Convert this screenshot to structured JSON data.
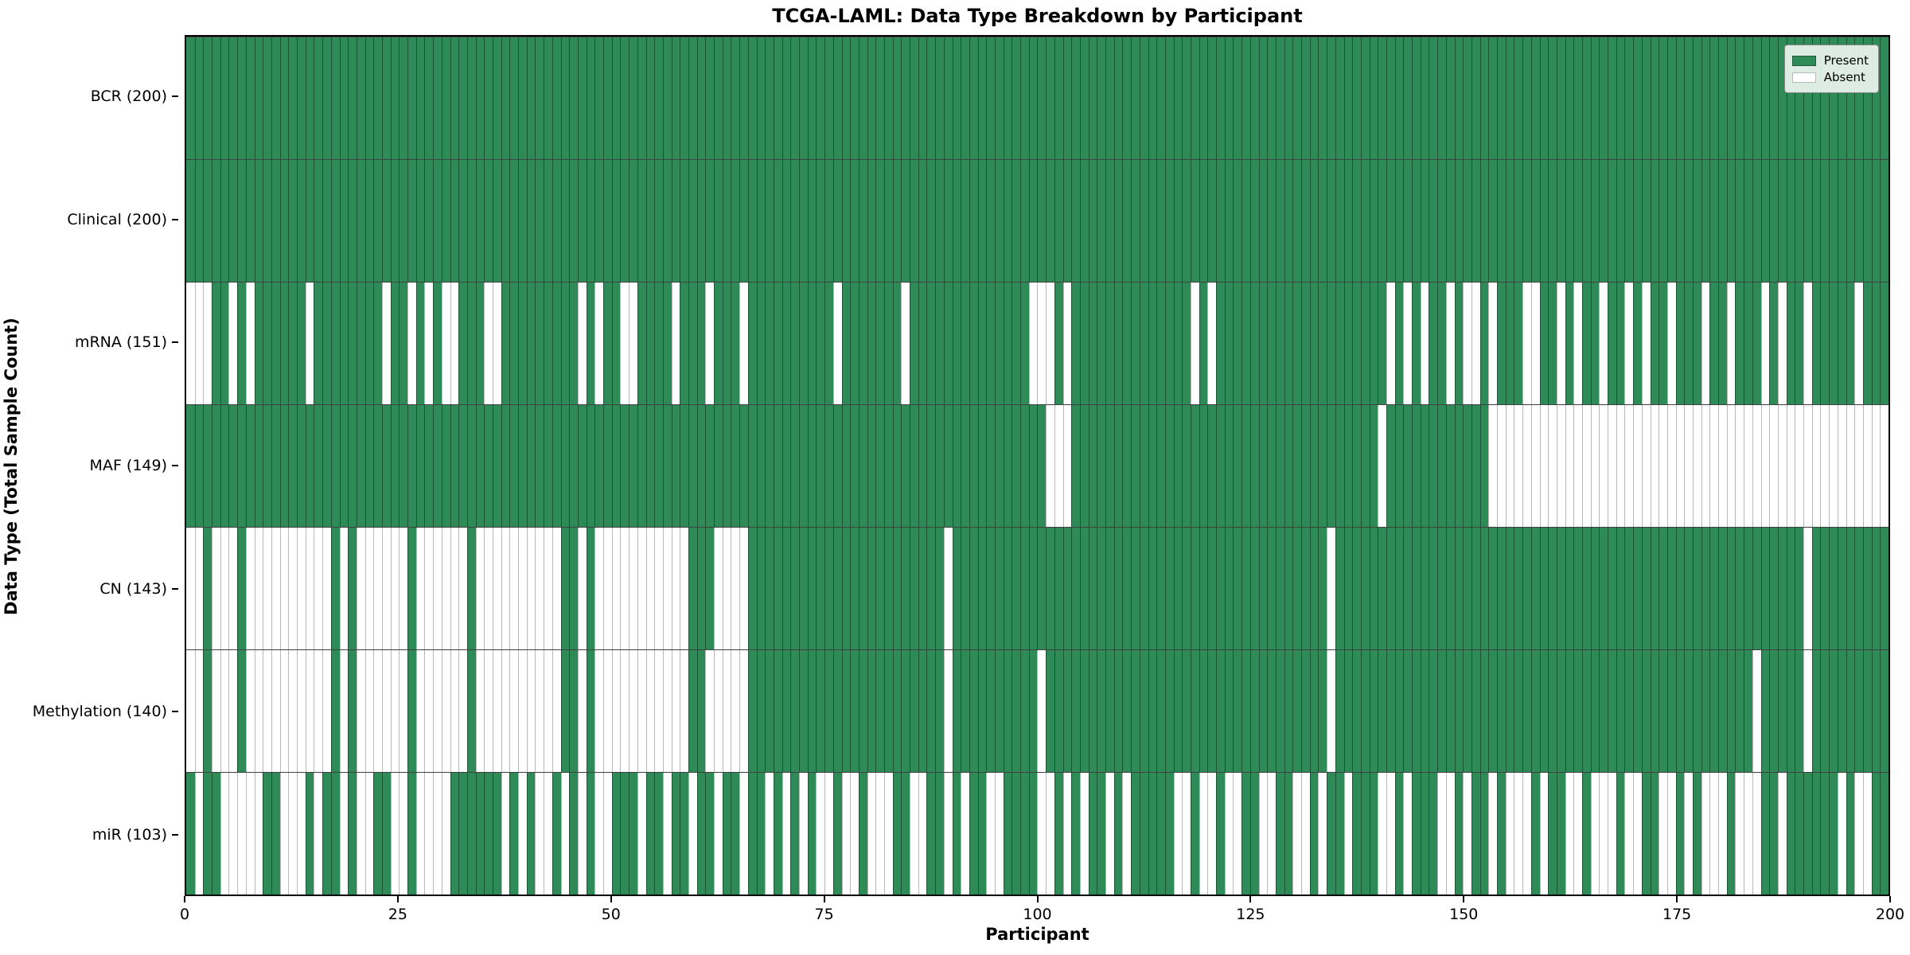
{
  "title": "TCGA-LAML: Data Type Breakdown by Participant",
  "xlabel": "Participant",
  "ylabel": "Data Type (Total Sample Count)",
  "legend": {
    "present": "Present",
    "absent": "Absent"
  },
  "colors": {
    "present": "#2e8b57",
    "absent": "#ffffff",
    "axis": "#000000"
  },
  "chart_data": {
    "type": "heatmap",
    "title": "TCGA-LAML: Data Type Breakdown by Participant",
    "xlabel": "Participant",
    "ylabel": "Data Type (Total Sample Count)",
    "legend_entries": [
      "Present",
      "Absent"
    ],
    "legend_position": "upper right",
    "n_participants": 200,
    "x_ticks": [
      0,
      25,
      50,
      75,
      100,
      125,
      150,
      175,
      200
    ],
    "x_range": [
      0,
      200
    ],
    "grid": true,
    "rows": [
      {
        "label": "BCR (200)",
        "data_type": "BCR",
        "present_count": 200,
        "absent": []
      },
      {
        "label": "Clinical (200)",
        "data_type": "Clinical",
        "present_count": 200,
        "absent": []
      },
      {
        "label": "mRNA (151)",
        "data_type": "mRNA",
        "present_count": 151,
        "absent": [
          0,
          1,
          2,
          5,
          7,
          14,
          23,
          26,
          28,
          30,
          31,
          35,
          36,
          46,
          48,
          51,
          52,
          57,
          61,
          65,
          76,
          84,
          99,
          100,
          101,
          103,
          118,
          120,
          141,
          143,
          145,
          148,
          150,
          151,
          153,
          157,
          158,
          161,
          163,
          166,
          169,
          171,
          174,
          178,
          181,
          185,
          187,
          190,
          196
        ]
      },
      {
        "label": "MAF (149)",
        "data_type": "MAF",
        "present_count": 149,
        "absent": [
          101,
          102,
          103,
          140,
          153,
          154,
          155,
          156,
          157,
          158,
          159,
          160,
          161,
          162,
          163,
          164,
          165,
          166,
          167,
          168,
          169,
          170,
          171,
          172,
          173,
          174,
          175,
          176,
          177,
          178,
          179,
          180,
          181,
          182,
          183,
          184,
          185,
          186,
          187,
          188,
          189,
          190,
          191,
          192,
          193,
          194,
          195,
          196,
          197,
          198,
          199
        ]
      },
      {
        "label": "CN (143)",
        "data_type": "CN",
        "present_count": 143,
        "absent": [
          0,
          1,
          3,
          4,
          5,
          7,
          8,
          9,
          10,
          11,
          12,
          13,
          14,
          15,
          16,
          18,
          20,
          21,
          22,
          23,
          24,
          25,
          27,
          28,
          29,
          30,
          31,
          32,
          34,
          35,
          36,
          37,
          38,
          39,
          40,
          41,
          42,
          43,
          46,
          48,
          49,
          50,
          51,
          52,
          53,
          54,
          55,
          56,
          57,
          58,
          62,
          63,
          64,
          65,
          89,
          134,
          190
        ]
      },
      {
        "label": "Methylation (140)",
        "data_type": "Methylation",
        "present_count": 140,
        "absent": [
          0,
          1,
          3,
          4,
          5,
          7,
          8,
          9,
          10,
          11,
          12,
          13,
          14,
          15,
          16,
          18,
          20,
          21,
          22,
          23,
          24,
          25,
          27,
          28,
          29,
          30,
          31,
          32,
          34,
          35,
          36,
          37,
          38,
          39,
          40,
          41,
          42,
          43,
          46,
          48,
          49,
          50,
          51,
          52,
          53,
          54,
          55,
          56,
          57,
          58,
          61,
          62,
          63,
          64,
          65,
          89,
          100,
          134,
          184,
          190
        ]
      },
      {
        "label": "miR (103)",
        "data_type": "miR",
        "present_count": 103,
        "absent": [
          1,
          4,
          5,
          6,
          7,
          8,
          11,
          12,
          13,
          15,
          18,
          20,
          21,
          24,
          25,
          27,
          28,
          29,
          30,
          37,
          39,
          41,
          42,
          44,
          46,
          48,
          49,
          53,
          56,
          59,
          62,
          65,
          68,
          70,
          72,
          74,
          75,
          77,
          78,
          80,
          81,
          82,
          85,
          86,
          89,
          91,
          94,
          95,
          100,
          101,
          103,
          105,
          108,
          110,
          116,
          117,
          119,
          120,
          122,
          123,
          126,
          127,
          130,
          131,
          133,
          136,
          140,
          141,
          143,
          147,
          148,
          150,
          153,
          155,
          156,
          157,
          159,
          162,
          163,
          165,
          166,
          167,
          169,
          170,
          173,
          174,
          176,
          178,
          179,
          180,
          182,
          183,
          184,
          187,
          194,
          196,
          197
        ]
      }
    ]
  }
}
